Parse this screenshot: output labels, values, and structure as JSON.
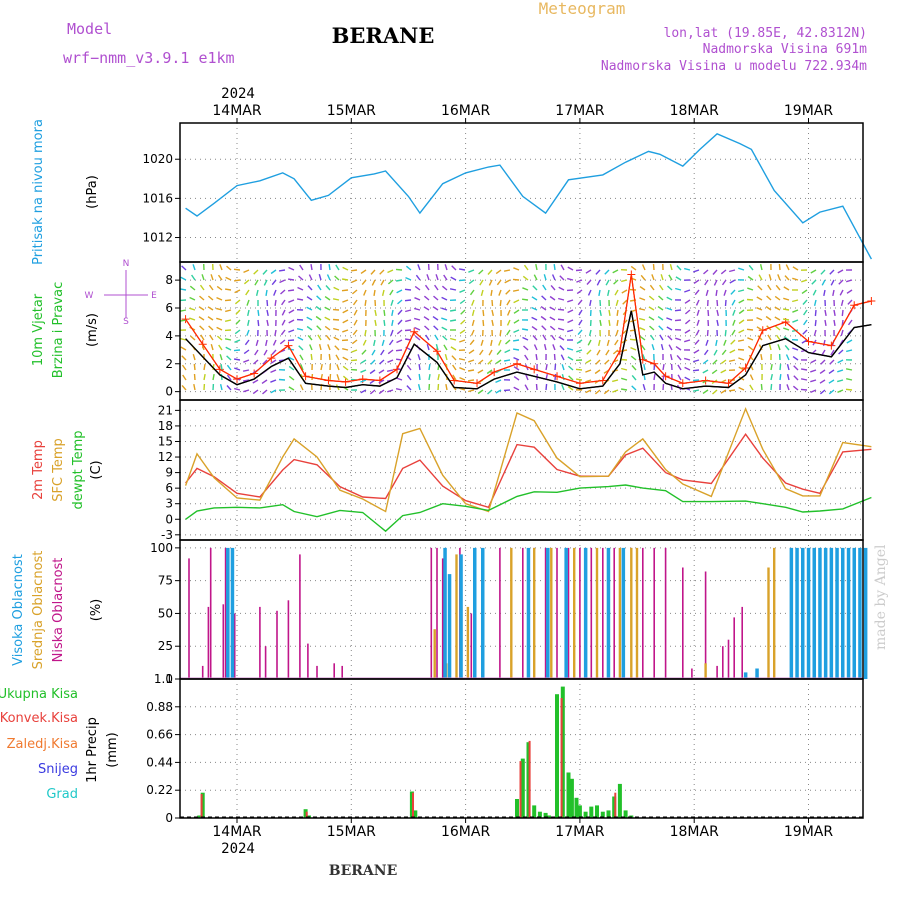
{
  "header": {
    "model_label": "Model",
    "model_name": "wrf−nmm_v3.9.1  e1km",
    "station": "BERANE",
    "product": "Meteogram",
    "lonlat": "lon,lat (19.85E, 42.8312N)",
    "elevation": "Nadmorska Visina 691m",
    "model_elevation": "Nadmorska Visina u modelu 722.934m",
    "footer_station": "BERANE",
    "credit": "made by Angel"
  },
  "time_axis": {
    "year_label": "2024",
    "days": [
      "14MAR",
      "15MAR",
      "16MAR",
      "17MAR",
      "18MAR",
      "19MAR"
    ]
  },
  "colors": {
    "pressure": "#1f9fe0",
    "temp2m": "#e8413c",
    "sfc_temp": "#d9a22a",
    "dewpoint": "#22c02a",
    "wind_speed": "#000000",
    "gust": "#ff2a00",
    "low_cloud": "#c0168a",
    "mid_cloud": "#d9a22a",
    "high_cloud": "#1f9fe0",
    "total_precip": "#22c02a",
    "conv_precip": "#e8413c",
    "ice_precip": "#f07a30",
    "snow": "#3a3ae0",
    "graupel": "#20c8c8",
    "model_text": "#b050d0",
    "product_text": "#e8b860"
  },
  "chart_data": [
    {
      "type": "line",
      "id": "pressure",
      "ylabel": "Pritisak na nivou mora",
      "unit": "(hPa)",
      "yticks": [
        1012,
        1016,
        1020
      ],
      "ylim": [
        1009.5,
        1023.7
      ],
      "x": [
        -0.45,
        -0.35,
        -0.2,
        0.0,
        0.2,
        0.4,
        0.5,
        0.65,
        0.8,
        1.0,
        1.2,
        1.3,
        1.5,
        1.6,
        1.8,
        2.0,
        2.2,
        2.3,
        2.5,
        2.7,
        2.9,
        3.2,
        3.4,
        3.6,
        3.7,
        3.9,
        4.05,
        4.2,
        4.4,
        4.5,
        4.7,
        4.95,
        5.1,
        5.3,
        5.55
      ],
      "series": [
        {
          "values": [
            1015.0,
            1014.2,
            1015.5,
            1017.3,
            1017.8,
            1018.6,
            1018.0,
            1015.8,
            1016.3,
            1018.1,
            1018.5,
            1018.8,
            1016.2,
            1014.5,
            1017.5,
            1018.6,
            1019.2,
            1019.4,
            1016.2,
            1014.5,
            1017.9,
            1018.4,
            1019.7,
            1020.8,
            1020.5,
            1019.3,
            1021.0,
            1022.6,
            1021.6,
            1021.0,
            1016.8,
            1013.5,
            1014.6,
            1015.2,
            1009.8
          ]
        }
      ]
    },
    {
      "type": "line",
      "id": "wind",
      "ylabel": "10m Vjetar",
      "ylabel2": "Brzina i Pravac",
      "unit": "(m/s)",
      "compass": [
        "N",
        "E",
        "S",
        "W"
      ],
      "yticks": [
        0,
        2,
        4,
        6,
        8
      ],
      "ylim": [
        -0.6,
        9.3
      ],
      "x": [
        -0.45,
        -0.3,
        -0.15,
        0.0,
        0.15,
        0.3,
        0.45,
        0.6,
        0.8,
        0.95,
        1.1,
        1.25,
        1.4,
        1.55,
        1.75,
        1.9,
        2.1,
        2.25,
        2.45,
        2.6,
        2.8,
        3.0,
        3.2,
        3.35,
        3.45,
        3.55,
        3.65,
        3.75,
        3.9,
        4.1,
        4.3,
        4.45,
        4.6,
        4.8,
        5.0,
        5.2,
        5.4,
        5.55
      ],
      "series": [
        {
          "name": "speed",
          "values": [
            3.8,
            2.5,
            1.2,
            0.5,
            0.9,
            1.8,
            2.4,
            0.6,
            0.4,
            0.3,
            0.5,
            0.4,
            1.0,
            3.4,
            2.1,
            0.3,
            0.2,
            0.9,
            1.4,
            1.1,
            0.7,
            0.2,
            0.4,
            2.0,
            5.8,
            1.2,
            1.4,
            0.6,
            0.2,
            0.4,
            0.3,
            1.2,
            3.3,
            3.8,
            2.8,
            2.5,
            4.6,
            4.8
          ]
        },
        {
          "name": "gust",
          "values": [
            5.2,
            3.4,
            1.6,
            0.9,
            1.3,
            2.4,
            3.3,
            1.1,
            0.8,
            0.7,
            0.9,
            0.8,
            1.6,
            4.3,
            2.9,
            0.8,
            0.6,
            1.4,
            2.0,
            1.6,
            1.1,
            0.6,
            0.8,
            2.9,
            8.4,
            2.3,
            2.0,
            1.1,
            0.6,
            0.8,
            0.6,
            1.7,
            4.4,
            5.0,
            3.6,
            3.3,
            6.2,
            6.5
          ]
        }
      ]
    },
    {
      "type": "line",
      "id": "temperature",
      "ylabel": "2m Temp",
      "ylabel2": "SFC Temp",
      "ylabel3": "dewpt Temp",
      "unit": "(C)",
      "yticks": [
        -3,
        0,
        3,
        6,
        9,
        12,
        15,
        18,
        21
      ],
      "ylim": [
        -4,
        23
      ],
      "x": [
        -0.45,
        -0.35,
        -0.2,
        0.0,
        0.2,
        0.4,
        0.5,
        0.7,
        0.9,
        1.1,
        1.3,
        1.45,
        1.6,
        1.8,
        2.0,
        2.2,
        2.45,
        2.6,
        2.8,
        3.0,
        3.25,
        3.4,
        3.55,
        3.75,
        3.9,
        4.15,
        4.45,
        4.6,
        4.8,
        4.95,
        5.1,
        5.3,
        5.55
      ],
      "series": [
        {
          "name": "2m",
          "values": [
            7.0,
            9.8,
            8.2,
            5.0,
            4.3,
            9.5,
            11.5,
            10.5,
            6.3,
            4.3,
            4.0,
            9.8,
            11.4,
            6.4,
            3.6,
            2.3,
            14.4,
            13.9,
            9.6,
            8.3,
            8.3,
            12.4,
            13.7,
            9.0,
            7.6,
            6.9,
            16.4,
            11.8,
            7.0,
            5.8,
            5.0,
            13.0,
            13.5
          ]
        },
        {
          "name": "SFC",
          "values": [
            6.5,
            12.6,
            8.0,
            4.1,
            3.7,
            12.0,
            15.5,
            12.0,
            5.6,
            3.9,
            1.5,
            16.5,
            17.5,
            8.5,
            3.0,
            1.5,
            20.5,
            19.0,
            11.8,
            8.2,
            8.3,
            13.0,
            15.5,
            9.6,
            6.8,
            4.4,
            21.3,
            13.5,
            5.9,
            4.5,
            4.5,
            14.8,
            14.0
          ]
        },
        {
          "name": "dewpt",
          "values": [
            0.0,
            1.6,
            2.2,
            2.3,
            2.2,
            2.8,
            1.5,
            0.5,
            1.7,
            1.3,
            -2.3,
            0.7,
            1.3,
            3.0,
            2.5,
            1.7,
            4.4,
            5.3,
            5.2,
            6.0,
            6.3,
            6.6,
            6.0,
            5.5,
            3.4,
            3.4,
            3.5,
            3.0,
            2.3,
            1.4,
            1.6,
            2.0,
            4.2
          ]
        }
      ]
    },
    {
      "type": "bar",
      "id": "cloud",
      "ylabel": "Visoka Oblacnost",
      "ylabel2": "Srednja Oblacnost",
      "ylabel3": "Niska  Oblacnost",
      "unit": "(%)",
      "yticks": [
        0,
        25,
        50,
        75,
        100
      ],
      "ylim": [
        0,
        106
      ],
      "series": [
        {
          "name": "low",
          "x": [
            -0.42,
            -0.3,
            -0.25,
            -0.23,
            -0.12,
            -0.1,
            -0.02,
            0.2,
            0.25,
            0.35,
            0.45,
            0.55,
            0.62,
            0.7,
            0.85,
            0.92,
            1.7,
            1.75,
            1.8,
            1.95,
            2.05,
            2.3,
            2.5,
            2.6,
            2.7,
            2.8,
            2.9,
            3.0,
            3.1,
            3.2,
            3.3,
            3.45,
            3.55,
            3.65,
            3.75,
            3.9,
            3.98,
            4.1,
            4.2,
            4.25,
            4.3,
            4.35,
            4.42
          ],
          "values": [
            92,
            10,
            55,
            100,
            57,
            100,
            50,
            55,
            25,
            52,
            60,
            95,
            27,
            10,
            12,
            10,
            100,
            100,
            92,
            100,
            50,
            100,
            100,
            100,
            100,
            100,
            100,
            100,
            100,
            100,
            100,
            100,
            100,
            100,
            100,
            85,
            8,
            82,
            10,
            25,
            30,
            47,
            55
          ]
        },
        {
          "name": "mid",
          "x": [
            1.73,
            1.83,
            1.92,
            2.02,
            2.4,
            2.6,
            2.75,
            2.95,
            3.15,
            3.35,
            3.45,
            3.5,
            4.1,
            4.65,
            4.7
          ],
          "values": [
            38,
            12,
            95,
            55,
            100,
            100,
            100,
            100,
            100,
            100,
            100,
            100,
            12,
            85,
            100
          ]
        },
        {
          "name": "high",
          "x": [
            -0.08,
            -0.04,
            1.82,
            1.86,
            1.96,
            2.08,
            2.15,
            2.55,
            2.72,
            2.88,
            3.05,
            3.25,
            3.38,
            4.45,
            4.55,
            4.85,
            4.9,
            4.95,
            5.0,
            5.05,
            5.1,
            5.15,
            5.2,
            5.25,
            5.3,
            5.35,
            5.4,
            5.45,
            5.5
          ],
          "values": [
            100,
            100,
            100,
            80,
            95,
            100,
            100,
            100,
            100,
            100,
            100,
            100,
            100,
            5,
            8,
            100,
            100,
            100,
            100,
            100,
            100,
            100,
            100,
            100,
            100,
            100,
            100,
            100,
            100
          ]
        }
      ]
    },
    {
      "type": "bar",
      "id": "precip",
      "ylabel": "1hr Precip",
      "unit": "(mm)",
      "legend": [
        "Ukupna  Kisa",
        "Konvek.Kisa",
        "Zaledj.Kisa",
        "Snijeg",
        "Grad"
      ],
      "yticks": [
        0,
        0.22,
        0.44,
        0.66,
        0.88,
        1.1
      ],
      "ylim": [
        0,
        1.1
      ],
      "series": [
        {
          "name": "total",
          "x": [
            -0.33,
            -0.3,
            0.6,
            0.63,
            1.53,
            1.56,
            2.45,
            2.5,
            2.55,
            2.6,
            2.65,
            2.7,
            2.73,
            2.8,
            2.85,
            2.9,
            2.93,
            2.97,
            3.0,
            3.05,
            3.1,
            3.15,
            3.2,
            3.25,
            3.3,
            3.35,
            3.4,
            3.45
          ],
          "values": [
            0.02,
            0.2,
            0.07,
            0.02,
            0.21,
            0.06,
            0.15,
            0.47,
            0.6,
            0.1,
            0.05,
            0.04,
            0.02,
            0.98,
            1.04,
            0.36,
            0.31,
            0.16,
            0.1,
            0.05,
            0.09,
            0.1,
            0.05,
            0.06,
            0.17,
            0.27,
            0.06,
            0.02
          ]
        },
        {
          "name": "conv",
          "x": [
            -0.31,
            0.61,
            1.54,
            2.48,
            2.56,
            2.84,
            3.31
          ],
          "values": [
            0.19,
            0.05,
            0.2,
            0.45,
            0.61,
            0.95,
            0.2
          ]
        }
      ]
    }
  ]
}
